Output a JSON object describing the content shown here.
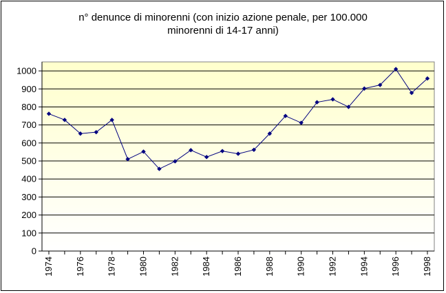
{
  "chart_data": {
    "type": "line",
    "title_lines": [
      "n° denunce di minorenni (con inizio azione penale, per 100.000",
      "minorenni di 14-17 anni)"
    ],
    "xlabel": "",
    "ylabel": "",
    "x": [
      1974,
      1975,
      1976,
      1977,
      1978,
      1979,
      1980,
      1981,
      1982,
      1983,
      1984,
      1985,
      1986,
      1987,
      1988,
      1989,
      1990,
      1991,
      1992,
      1993,
      1994,
      1995,
      1996,
      1997,
      1998
    ],
    "x_tick_labels": [
      "1974",
      "1976",
      "1978",
      "1980",
      "1982",
      "1984",
      "1986",
      "1988",
      "1990",
      "1992",
      "1994",
      "1996",
      "1998"
    ],
    "y_tick_labels": [
      "0",
      "100",
      "200",
      "300",
      "400",
      "500",
      "600",
      "700",
      "800",
      "900",
      "1000"
    ],
    "ylim": [
      0,
      1050
    ],
    "series": [
      {
        "values": [
          762,
          728,
          652,
          660,
          728,
          510,
          552,
          456,
          498,
          560,
          522,
          555,
          540,
          562,
          652,
          750,
          712,
          826,
          842,
          800,
          902,
          922,
          1010,
          878,
          958
        ]
      }
    ],
    "grid": true,
    "legend": "none",
    "colors": {
      "line": "#000080",
      "marker": "#000080",
      "plot_bg_top": "#FFFFCC",
      "plot_bg_bottom": "#FFFFFF",
      "grid": "#000000"
    }
  }
}
